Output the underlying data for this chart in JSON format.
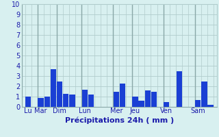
{
  "bar_values": [
    1.0,
    0.0,
    0.9,
    1.0,
    3.7,
    2.5,
    1.3,
    1.2,
    0.0,
    1.7,
    1.2,
    0.0,
    0.0,
    0.0,
    1.5,
    2.3,
    0.0,
    1.0,
    0.6,
    1.6,
    1.5,
    0.0,
    0.5,
    0.0,
    3.5,
    0.0,
    0.0,
    0.7,
    2.5,
    0.2
  ],
  "bar_color": "#1a3fd4",
  "background_color": "#d8f0f0",
  "grid_color": "#b0cccc",
  "axis_label_color": "#1a1aaa",
  "tick_color": "#1a1aaa",
  "xlabel": "Précipitations 24h ( mm )",
  "ylim": [
    0,
    10
  ],
  "yticks": [
    0,
    1,
    2,
    3,
    4,
    5,
    6,
    7,
    8,
    9,
    10
  ],
  "day_labels": [
    "Lu",
    "Mar",
    "Dim",
    "Lun",
    "Mer",
    "Jeu",
    "Ven",
    "Sam"
  ],
  "day_positions": [
    0,
    2,
    5,
    9,
    14,
    17,
    22,
    27
  ],
  "separator_x": [
    1.5,
    4.5,
    8.5,
    13.5,
    16.5,
    21.5,
    26.5
  ],
  "xlabel_fontsize": 8,
  "tick_fontsize": 7
}
